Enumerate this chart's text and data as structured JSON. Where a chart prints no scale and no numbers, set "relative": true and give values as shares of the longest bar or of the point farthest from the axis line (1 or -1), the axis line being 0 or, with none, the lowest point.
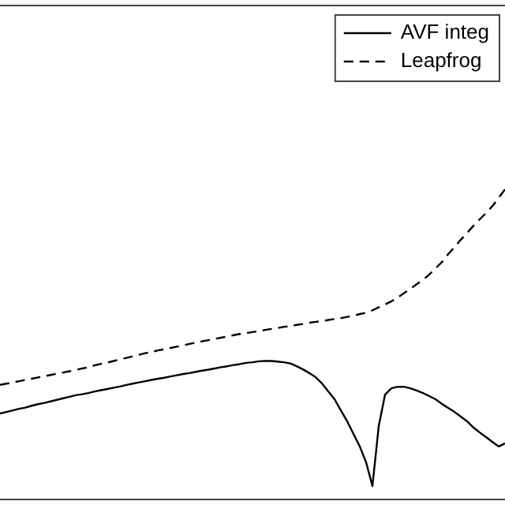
{
  "chart_data": {
    "type": "line",
    "relative": true,
    "legend": "top right",
    "marker": "none",
    "grid": false,
    "categories": [
      null,
      null,
      null,
      null,
      null,
      null,
      null,
      null,
      null,
      null,
      null,
      null,
      null,
      null,
      null,
      null,
      null,
      null,
      null,
      null,
      null,
      null,
      null,
      null,
      null,
      null,
      null,
      null,
      null,
      null,
      null,
      null,
      null,
      null,
      null,
      null,
      null,
      null,
      null,
      null,
      null,
      null,
      null,
      null,
      null,
      null,
      null,
      null,
      null,
      null,
      null,
      null,
      null,
      null,
      null,
      null,
      null,
      null,
      null,
      null,
      null,
      null,
      null,
      null,
      null,
      null,
      null,
      null,
      null,
      null,
      null,
      null,
      null,
      null,
      null,
      null,
      null,
      null,
      null,
      null,
      null
    ],
    "series": [
      {
        "name": "AVF integ",
        "color": "#000000",
        "line_style": "solid",
        "values": [
          0.279,
          0.284,
          0.289,
          0.294,
          0.298,
          0.304,
          0.309,
          0.313,
          0.318,
          0.323,
          0.328,
          0.333,
          0.338,
          0.341,
          0.345,
          0.35,
          0.354,
          0.358,
          0.362,
          0.366,
          0.371,
          0.375,
          0.379,
          0.383,
          0.387,
          0.391,
          0.394,
          0.398,
          0.402,
          0.406,
          0.409,
          0.413,
          0.417,
          0.42,
          0.424,
          0.428,
          0.431,
          0.435,
          0.438,
          0.442,
          0.444,
          0.447,
          0.448,
          0.448,
          0.446,
          0.444,
          0.44,
          0.431,
          0.421,
          0.409,
          0.396,
          0.376,
          0.35,
          0.325,
          0.289,
          0.254,
          0.213,
          0.173,
          0.122,
          0.046,
          0.239,
          0.34,
          0.36,
          0.365,
          0.365,
          0.36,
          0.353,
          0.345,
          0.335,
          0.325,
          0.31,
          0.297,
          0.284,
          0.269,
          0.254,
          0.234,
          0.218,
          0.203,
          0.188,
          0.173,
          0.183
        ]
      },
      {
        "name": "Leapfrog",
        "color": "#000000",
        "line_style": "dashed",
        "values": [
          0.371,
          0.375,
          0.379,
          0.383,
          0.387,
          0.391,
          0.395,
          0.399,
          0.403,
          0.407,
          0.411,
          0.415,
          0.419,
          0.424,
          0.428,
          0.434,
          0.439,
          0.443,
          0.448,
          0.453,
          0.458,
          0.463,
          0.468,
          0.473,
          0.477,
          0.482,
          0.486,
          0.49,
          0.494,
          0.498,
          0.503,
          0.507,
          0.511,
          0.515,
          0.519,
          0.523,
          0.527,
          0.531,
          0.535,
          0.538,
          0.541,
          0.544,
          0.548,
          0.551,
          0.554,
          0.558,
          0.56,
          0.564,
          0.567,
          0.571,
          0.574,
          0.576,
          0.58,
          0.583,
          0.586,
          0.59,
          0.594,
          0.599,
          0.603,
          0.611,
          0.621,
          0.63,
          0.64,
          0.652,
          0.666,
          0.68,
          0.695,
          0.709,
          0.726,
          0.746,
          0.766,
          0.792,
          0.814,
          0.838,
          0.86,
          0.883,
          0.904,
          0.924,
          0.946,
          0.973,
          1.0
        ]
      }
    ]
  }
}
